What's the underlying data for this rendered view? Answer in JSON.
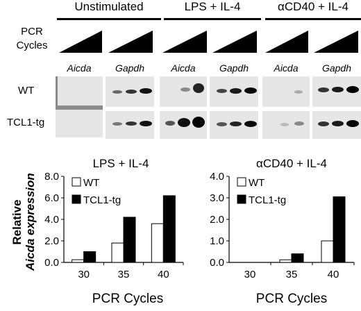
{
  "conditions": [
    "Unstimulated",
    "LPS + IL-4",
    "αCD40 + IL-4"
  ],
  "pcr_cycles_label": [
    "PCR",
    "Cycles"
  ],
  "genes": [
    "Aicda",
    "Gapdh",
    "Aicda",
    "Gapdh",
    "Aicda",
    "Gapdh"
  ],
  "rows": [
    "WT",
    "TCL1-tg"
  ],
  "y_axis_label": [
    "Relative",
    "Aicda expression"
  ],
  "chart_data": [
    {
      "type": "bar",
      "title": "LPS + IL-4",
      "categories": [
        "30",
        "35",
        "40"
      ],
      "series": [
        {
          "name": "WT",
          "values": [
            0.25,
            1.8,
            3.6
          ],
          "color": "#ffffff"
        },
        {
          "name": "TCL1-tg",
          "values": [
            1.0,
            4.2,
            6.2
          ],
          "color": "#000000"
        }
      ],
      "xlabel": "PCR Cycles",
      "ylim": [
        0,
        8
      ],
      "yticks": [
        "0.0",
        "2.0",
        "4.0",
        "6.0",
        "8.0"
      ],
      "legend": "top-left"
    },
    {
      "type": "bar",
      "title": "αCD40 + IL-4",
      "categories": [
        "30",
        "35",
        "40"
      ],
      "series": [
        {
          "name": "WT",
          "values": [
            0.0,
            0.12,
            1.0
          ],
          "color": "#ffffff"
        },
        {
          "name": "TCL1-tg",
          "values": [
            0.0,
            0.4,
            3.05
          ],
          "color": "#000000"
        }
      ],
      "xlabel": "PCR Cycles",
      "ylim": [
        0,
        4
      ],
      "yticks": [
        "0.0",
        "1.0",
        "2.0",
        "3.0",
        "4.0"
      ],
      "legend": "top-left"
    }
  ]
}
